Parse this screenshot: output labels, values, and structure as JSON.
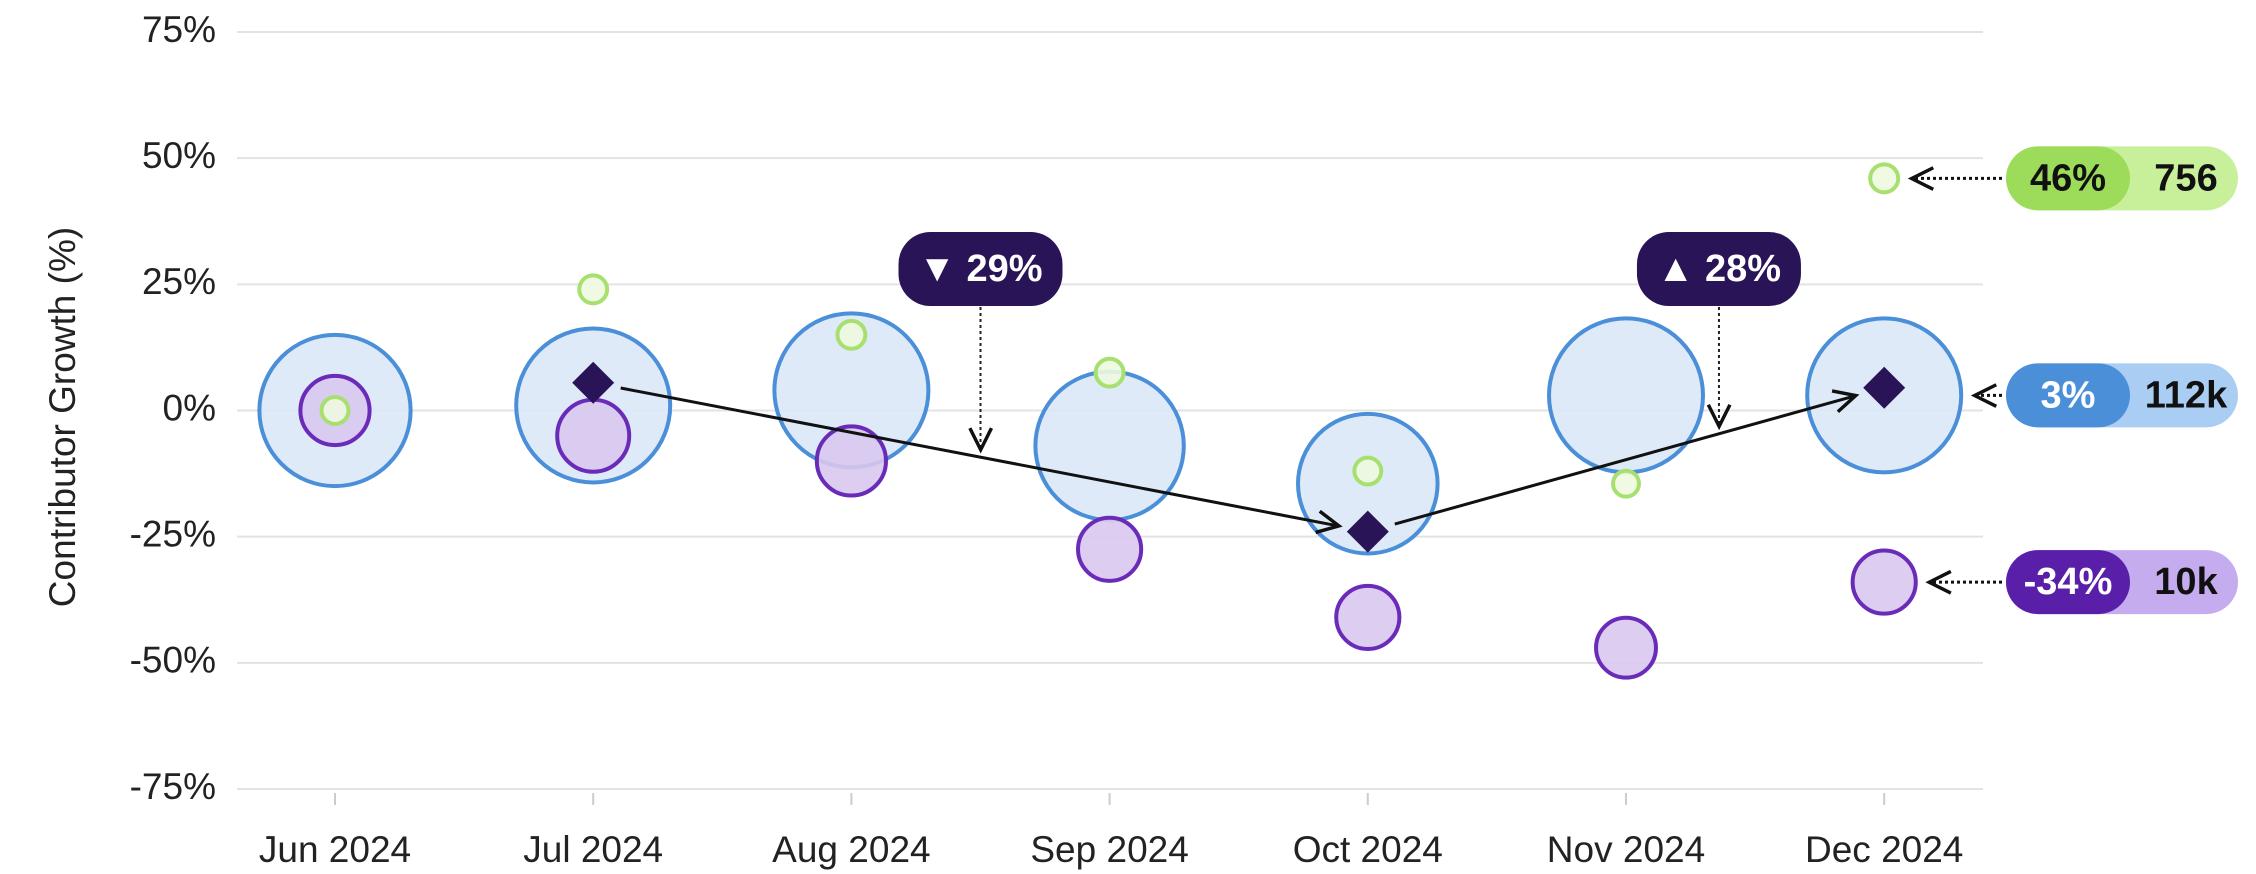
{
  "chart_data": {
    "type": "bubble",
    "y_label": "Contributor Growth (%)",
    "categories": [
      "Jun 2024",
      "Jul 2024",
      "Aug 2024",
      "Sep 2024",
      "Oct 2024",
      "Nov 2024",
      "Dec 2024"
    ],
    "ylim": [
      -75,
      75
    ],
    "yticks": [
      {
        "value": 75,
        "label": "75%"
      },
      {
        "value": 50,
        "label": "50%"
      },
      {
        "value": 25,
        "label": "25%"
      },
      {
        "value": 0,
        "label": "0%"
      },
      {
        "value": -25,
        "label": "-25%"
      },
      {
        "value": -50,
        "label": "-50%"
      },
      {
        "value": -75,
        "label": "-75%"
      }
    ],
    "grid": true,
    "series": [
      {
        "color": "#4a8fd8",
        "fill": "#dce8f8",
        "label_fill": "#a9cdf3",
        "values": [
          0,
          1,
          4,
          -7,
          -14.5,
          3,
          3
        ],
        "sizes": [
          108000,
          112000,
          112000,
          104000,
          92000,
          112000,
          112000
        ],
        "end_value_label": "3%",
        "end_size_label": "112k"
      },
      {
        "color": "#6a2cb8",
        "fill": "#d9c8ee",
        "label_fill": "#c4acef",
        "label_color": "#5a1fa8",
        "values": [
          0,
          -5,
          -10,
          -27.5,
          -41,
          -47,
          -34
        ],
        "sizes": [
          12000,
          13000,
          12000,
          10000,
          10000,
          9000,
          10000
        ],
        "end_value_label": "-34%",
        "end_size_label": "10k"
      },
      {
        "color": "#a8e070",
        "fill": "#eef9e0",
        "label_fill": "#c8f09a",
        "label_color": "#9ddb5a",
        "values": [
          0,
          24,
          15,
          7.5,
          -12,
          -14.5,
          46
        ],
        "sizes": [
          700,
          750,
          750,
          750,
          700,
          650,
          756
        ],
        "end_value_label": "46%",
        "end_size_label": "756"
      }
    ],
    "trend": {
      "color": "#2a1458",
      "values": [
        null,
        5.5,
        null,
        null,
        -24,
        null,
        4.5
      ]
    },
    "annotations": [
      "▼ 29%",
      "▲ 28%"
    ]
  }
}
